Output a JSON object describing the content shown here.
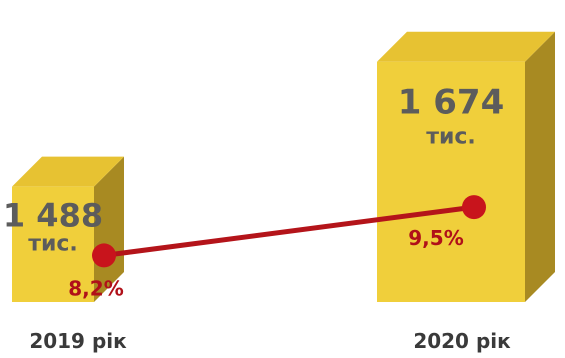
{
  "chart_data": {
    "type": "bar",
    "categories": [
      "2019 рік",
      "2020 рік"
    ],
    "series": [
      {
        "values": [
          1488,
          1674
        ],
        "labels": [
          "1 488",
          "1 674"
        ],
        "unit": "тис."
      },
      {
        "type": "line",
        "values": [
          8.2,
          9.5
        ],
        "labels": [
          "8,2%",
          "9,5%"
        ]
      }
    ],
    "title": "",
    "xlabel": "",
    "ylabel": ""
  },
  "colors": {
    "bar_front": "#F0CF3B",
    "bar_top": "#E7C232",
    "bar_side": "#A88A22",
    "value_text": "#5C5C5C",
    "line": "#B4141A",
    "marker": "#C8141C",
    "percent_text": "#B01019",
    "category_text": "#3A3A3A"
  }
}
